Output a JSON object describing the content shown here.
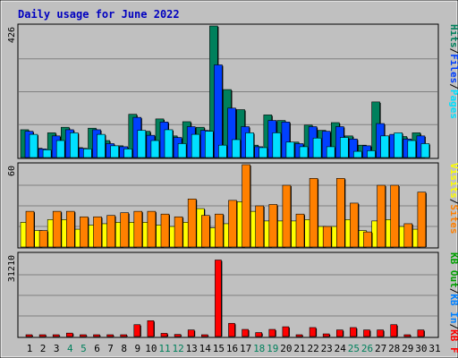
{
  "title": "Daily usage for June 2022",
  "colors": {
    "frame_bg": "#c0c0c0",
    "panel_bg": "#c0c0c0",
    "grid": "#808080",
    "title": "#0000c0",
    "hits": "#00805c",
    "files": "#0040ff",
    "pages": "#00e0ff",
    "visits": "#ffff00",
    "sites": "#ff8000",
    "kbin": "#0080ff",
    "kbout": "#00a000",
    "kbf": "#ff0000",
    "weekend_day": "#00805c",
    "weekday": "#000000"
  },
  "right_labels": {
    "top": [
      {
        "text": "Hits",
        "key": "hits"
      },
      {
        "text": "/",
        "key": "sep"
      },
      {
        "text": "Files",
        "key": "files"
      },
      {
        "text": "/",
        "key": "sep"
      },
      {
        "text": "Pages",
        "key": "pages"
      }
    ],
    "mid": [
      {
        "text": "Visits",
        "key": "visits"
      },
      {
        "text": "/",
        "key": "sep"
      },
      {
        "text": "Sites",
        "key": "sites"
      }
    ],
    "bot": [
      {
        "text": "KB Out",
        "key": "kbout"
      },
      {
        "text": "/",
        "key": "sep"
      },
      {
        "text": "KB In",
        "key": "kbin"
      },
      {
        "text": "/",
        "key": "sep"
      },
      {
        "text": "KB F",
        "key": "kbf"
      }
    ]
  },
  "chart_data": [
    {
      "type": "bar",
      "panel": "hits-files-pages",
      "ymax_label": "426",
      "ylim": [
        0,
        426
      ],
      "categories": [
        "1",
        "2",
        "3",
        "4",
        "5",
        "6",
        "7",
        "8",
        "9",
        "10",
        "11",
        "12",
        "13",
        "14",
        "15",
        "16",
        "17",
        "18",
        "19",
        "20",
        "21",
        "22",
        "23",
        "24",
        "25",
        "26",
        "27",
        "28",
        "29",
        "30",
        "31"
      ],
      "weekend_days": [
        "4",
        "5",
        "11",
        "12",
        "18",
        "19",
        "25",
        "26"
      ],
      "series": [
        {
          "name": "Hits",
          "values": [
            90,
            30,
            80,
            98,
            32,
            95,
            55,
            38,
            140,
            85,
            125,
            70,
            116,
            98,
            426,
            220,
            155,
            40,
            138,
            120,
            50,
            105,
            88,
            113,
            70,
            40,
            180,
            70,
            68,
            80,
            0
          ]
        },
        {
          "name": "Files",
          "values": [
            85,
            28,
            70,
            90,
            30,
            90,
            45,
            35,
            130,
            72,
            115,
            65,
            100,
            88,
            300,
            160,
            100,
            35,
            120,
            115,
            45,
            100,
            85,
            100,
            60,
            38,
            110,
            75,
            60,
            70,
            0
          ]
        },
        {
          "name": "Pages",
          "values": [
            75,
            25,
            55,
            80,
            28,
            75,
            38,
            28,
            88,
            55,
            90,
            45,
            75,
            85,
            40,
            58,
            80,
            32,
            80,
            50,
            35,
            63,
            35,
            65,
            20,
            22,
            70,
            80,
            55,
            45,
            0
          ]
        }
      ]
    },
    {
      "type": "bar",
      "panel": "visits-sites",
      "ymax_label": "60",
      "ylim": [
        0,
        60
      ],
      "categories": [
        "1",
        "2",
        "3",
        "4",
        "5",
        "6",
        "7",
        "8",
        "9",
        "10",
        "11",
        "12",
        "13",
        "14",
        "15",
        "16",
        "17",
        "18",
        "19",
        "20",
        "21",
        "22",
        "23",
        "24",
        "25",
        "26",
        "27",
        "28",
        "29",
        "30",
        "31"
      ],
      "series": [
        {
          "name": "Visits",
          "values": [
            18,
            12,
            20,
            20,
            13,
            16,
            17,
            18,
            18,
            18,
            16,
            15,
            18,
            28,
            14,
            17,
            33,
            26,
            19,
            19,
            19,
            20,
            15,
            15,
            20,
            12,
            19,
            20,
            15,
            13,
            0
          ]
        },
        {
          "name": "Sites",
          "values": [
            26,
            12,
            26,
            26,
            22,
            22,
            23,
            25,
            26,
            26,
            24,
            22,
            35,
            23,
            24,
            34,
            60,
            30,
            31,
            45,
            24,
            50,
            15,
            50,
            32,
            11,
            45,
            45,
            17,
            40,
            0
          ]
        }
      ]
    },
    {
      "type": "bar",
      "panel": "kb",
      "ymax_label": "31210",
      "ylim": [
        0,
        31210
      ],
      "categories": [
        "1",
        "2",
        "3",
        "4",
        "5",
        "6",
        "7",
        "8",
        "9",
        "10",
        "11",
        "12",
        "13",
        "14",
        "15",
        "16",
        "17",
        "18",
        "19",
        "20",
        "21",
        "22",
        "23",
        "24",
        "25",
        "26",
        "27",
        "28",
        "29",
        "30",
        "31"
      ],
      "series": [
        {
          "name": "KB F",
          "values": [
            300,
            300,
            300,
            1300,
            300,
            300,
            300,
            300,
            4500,
            6000,
            1200,
            800,
            2500,
            300,
            29000,
            5000,
            2700,
            1500,
            2700,
            3700,
            300,
            3400,
            1000,
            2500,
            3400,
            2500,
            2500,
            4500,
            300,
            2500,
            0
          ]
        }
      ]
    }
  ]
}
